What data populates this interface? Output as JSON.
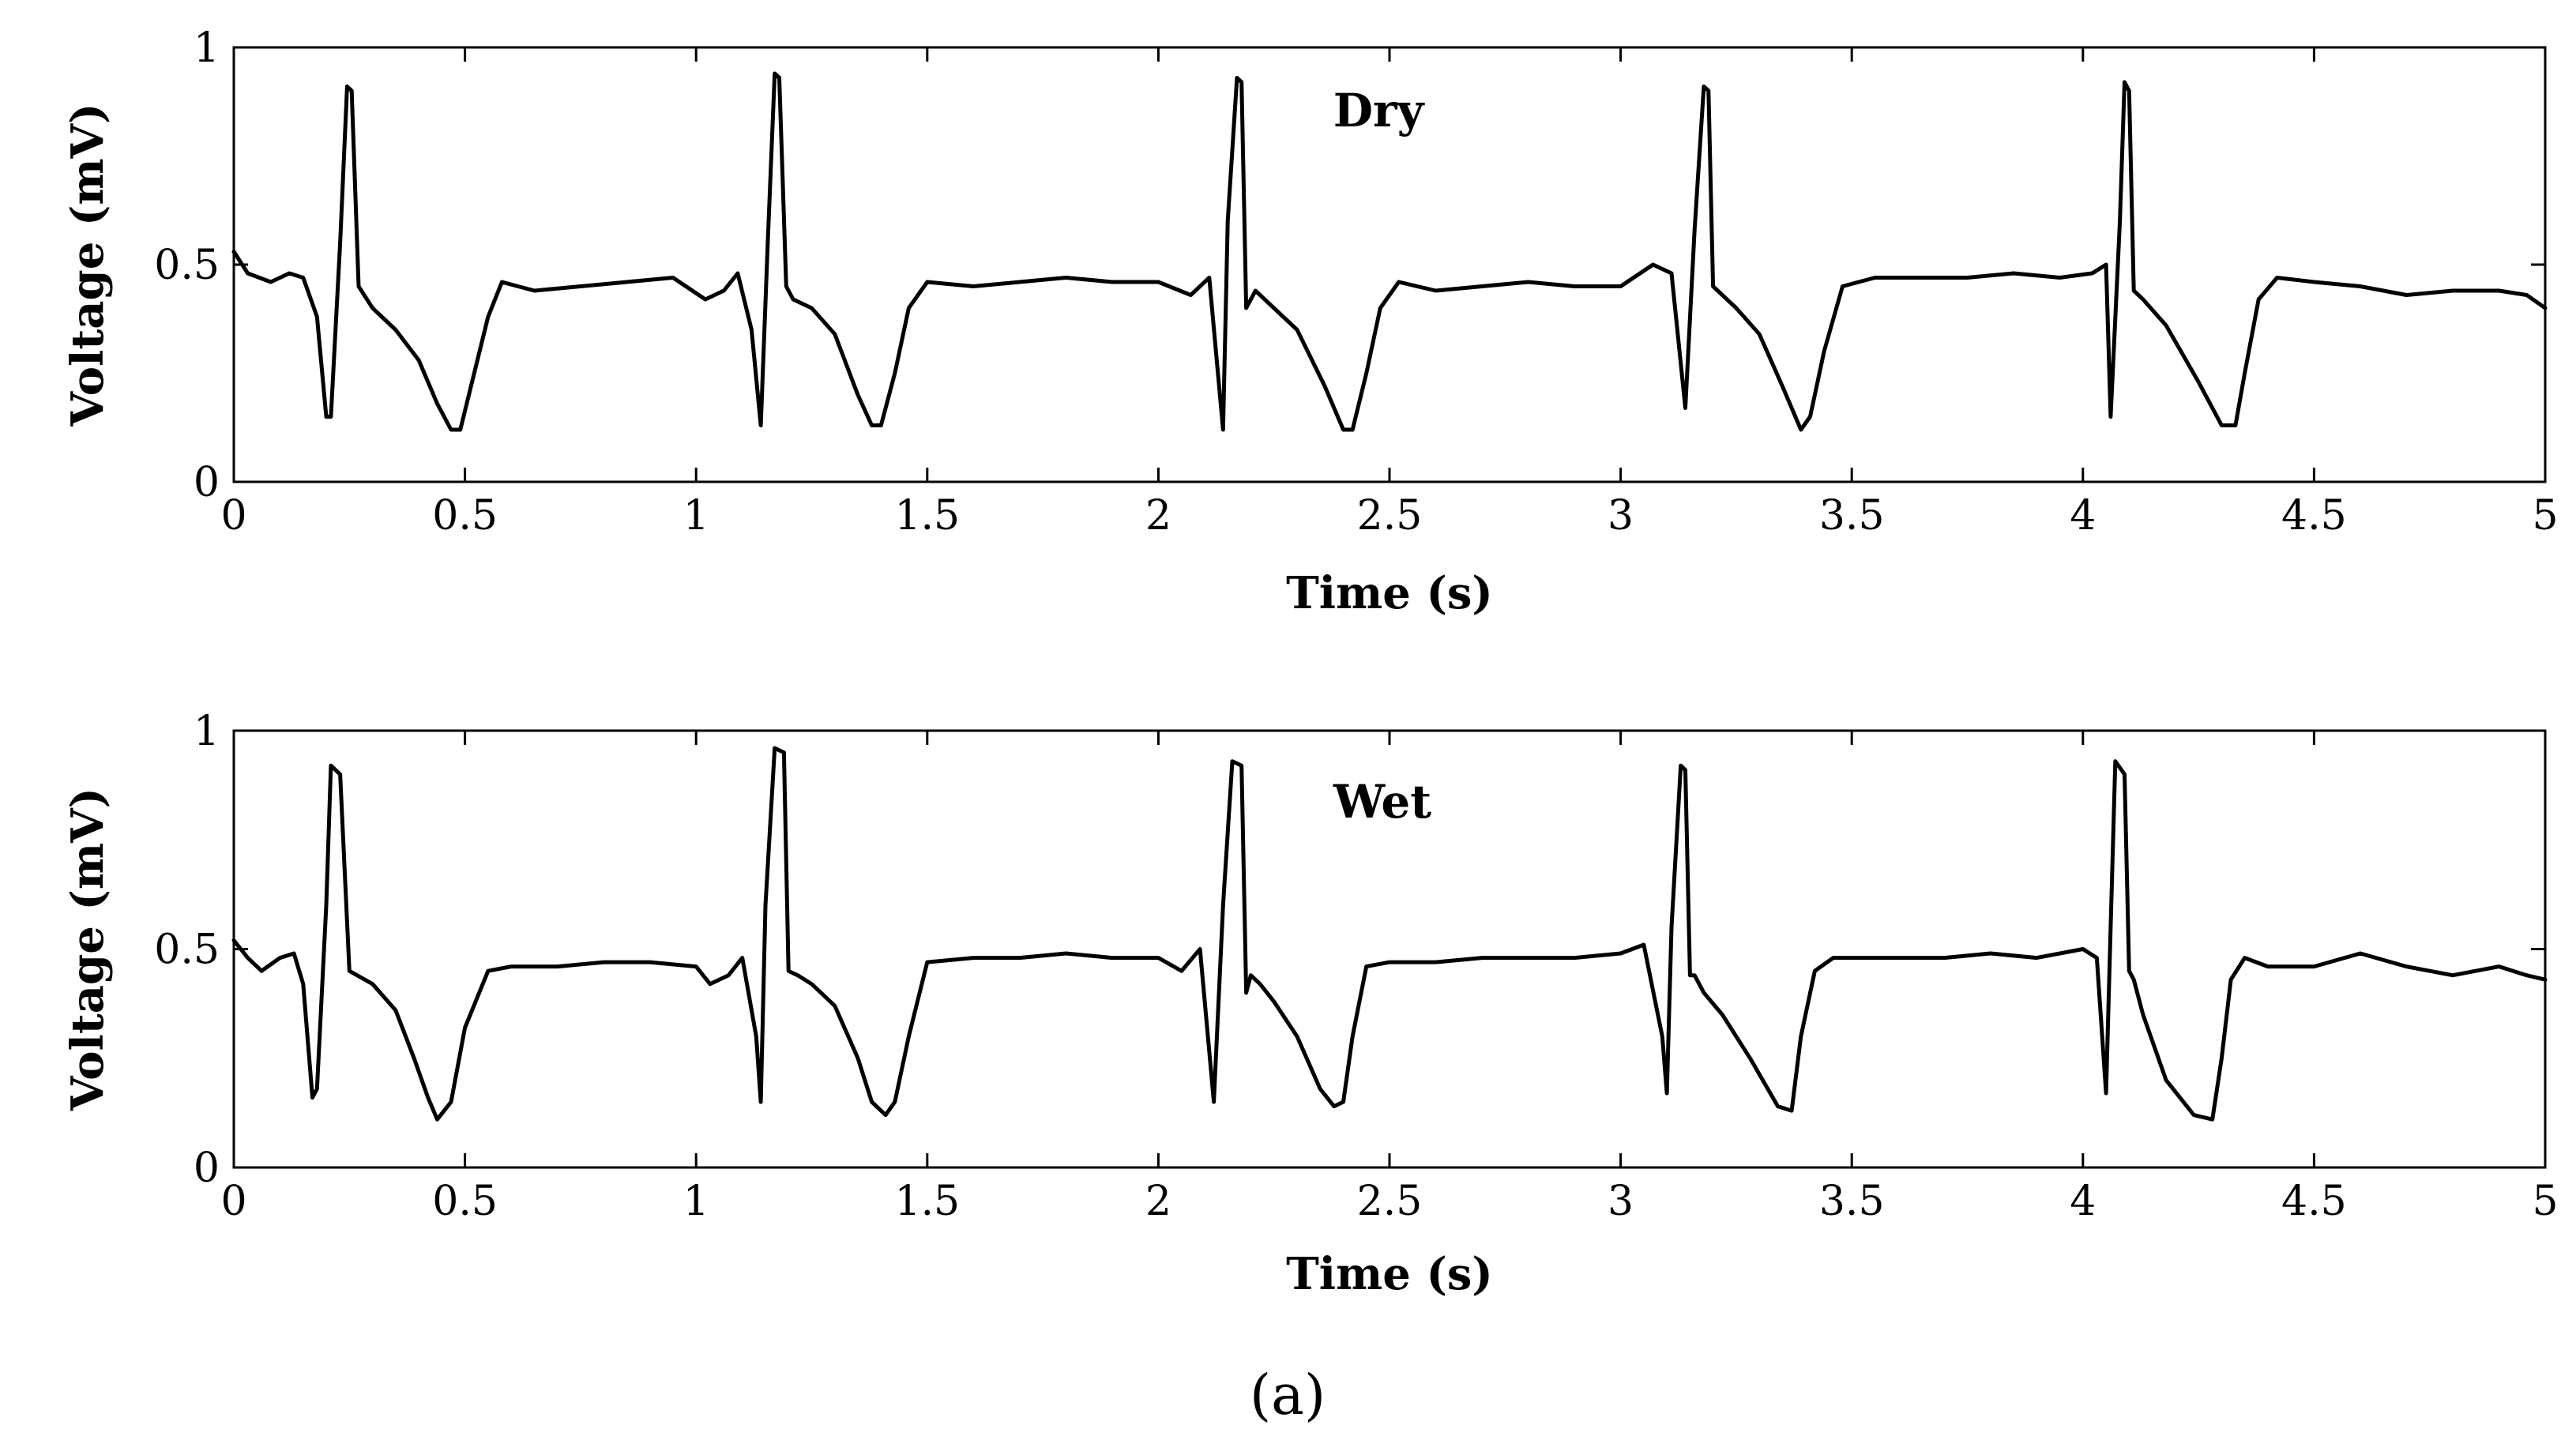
{
  "caption": "(a)",
  "chart_data": [
    {
      "type": "line",
      "title": "",
      "panel_label": "Dry",
      "xlabel": "Time (s)",
      "ylabel": "Voltage (mV)",
      "xlim": [
        0,
        5
      ],
      "ylim": [
        0,
        1
      ],
      "xticks": [
        0,
        0.5,
        1,
        1.5,
        2,
        2.5,
        3,
        3.5,
        4,
        4.5,
        5
      ],
      "xtick_labels": [
        "0",
        "0.5",
        "1",
        "1.5",
        "2",
        "2.5",
        "3",
        "3.5",
        "4",
        "4.5",
        "5"
      ],
      "yticks": [
        0,
        0.5,
        1
      ],
      "ytick_labels": [
        "0",
        "0.5",
        "1"
      ],
      "grid": false,
      "legend": "none",
      "color": "#000000",
      "series": [
        {
          "values_note": "",
          "x": [
            0,
            0.03,
            0.08,
            0.12,
            0.15,
            0.18,
            0.2,
            0.21,
            0.23,
            0.245,
            0.255,
            0.27,
            0.3,
            0.35,
            0.4,
            0.44,
            0.47,
            0.49,
            0.52,
            0.55,
            0.58,
            0.65,
            0.75,
            0.85,
            0.95,
            1.02,
            1.06,
            1.09,
            1.12,
            1.14,
            1.155,
            1.17,
            1.18,
            1.195,
            1.21,
            1.25,
            1.3,
            1.35,
            1.38,
            1.4,
            1.43,
            1.46,
            1.5,
            1.6,
            1.7,
            1.8,
            1.9,
            2.0,
            2.07,
            2.11,
            2.14,
            2.15,
            2.17,
            2.18,
            2.19,
            2.21,
            2.25,
            2.3,
            2.36,
            2.4,
            2.42,
            2.45,
            2.48,
            2.52,
            2.6,
            2.7,
            2.8,
            2.9,
            3.0,
            3.07,
            3.11,
            3.14,
            3.16,
            3.18,
            3.19,
            3.2,
            3.22,
            3.25,
            3.3,
            3.35,
            3.39,
            3.41,
            3.44,
            3.48,
            3.55,
            3.65,
            3.75,
            3.85,
            3.95,
            4.02,
            4.05,
            4.06,
            4.08,
            4.09,
            4.1,
            4.11,
            4.13,
            4.18,
            4.25,
            4.3,
            4.33,
            4.35,
            4.38,
            4.42,
            4.5,
            4.6,
            4.7,
            4.8,
            4.9,
            4.96,
            5.0
          ],
          "y": [
            0.53,
            0.48,
            0.46,
            0.48,
            0.47,
            0.38,
            0.15,
            0.15,
            0.55,
            0.91,
            0.9,
            0.45,
            0.4,
            0.35,
            0.28,
            0.18,
            0.12,
            0.12,
            0.25,
            0.38,
            0.46,
            0.44,
            0.45,
            0.46,
            0.47,
            0.42,
            0.44,
            0.48,
            0.35,
            0.13,
            0.55,
            0.94,
            0.93,
            0.45,
            0.42,
            0.4,
            0.34,
            0.2,
            0.13,
            0.13,
            0.25,
            0.4,
            0.46,
            0.45,
            0.46,
            0.47,
            0.46,
            0.46,
            0.43,
            0.47,
            0.12,
            0.6,
            0.93,
            0.92,
            0.4,
            0.44,
            0.4,
            0.35,
            0.22,
            0.12,
            0.12,
            0.25,
            0.4,
            0.46,
            0.44,
            0.45,
            0.46,
            0.45,
            0.45,
            0.5,
            0.48,
            0.17,
            0.58,
            0.91,
            0.9,
            0.45,
            0.43,
            0.4,
            0.34,
            0.22,
            0.12,
            0.15,
            0.3,
            0.45,
            0.47,
            0.47,
            0.47,
            0.48,
            0.47,
            0.48,
            0.5,
            0.15,
            0.6,
            0.92,
            0.9,
            0.44,
            0.42,
            0.36,
            0.23,
            0.13,
            0.13,
            0.25,
            0.42,
            0.47,
            0.46,
            0.45,
            0.43,
            0.44,
            0.44,
            0.43,
            0.4
          ]
        }
      ]
    },
    {
      "type": "line",
      "title": "",
      "panel_label": "Wet",
      "xlabel": "Time (s)",
      "ylabel": "Voltage (mV)",
      "xlim": [
        0,
        5
      ],
      "ylim": [
        0,
        1
      ],
      "xticks": [
        0,
        0.5,
        1,
        1.5,
        2,
        2.5,
        3,
        3.5,
        4,
        4.5,
        5
      ],
      "xtick_labels": [
        "0",
        "0.5",
        "1",
        "1.5",
        "2",
        "2.5",
        "3",
        "3.5",
        "4",
        "4.5",
        "5"
      ],
      "yticks": [
        0,
        0.5,
        1
      ],
      "ytick_labels": [
        "0",
        "0.5",
        "1"
      ],
      "grid": false,
      "legend": "none",
      "color": "#000000",
      "series": [
        {
          "x": [
            0,
            0.03,
            0.06,
            0.1,
            0.13,
            0.15,
            0.17,
            0.18,
            0.2,
            0.21,
            0.23,
            0.25,
            0.3,
            0.35,
            0.39,
            0.42,
            0.44,
            0.47,
            0.5,
            0.55,
            0.6,
            0.7,
            0.8,
            0.9,
            1.0,
            1.03,
            1.07,
            1.1,
            1.13,
            1.14,
            1.15,
            1.17,
            1.19,
            1.2,
            1.22,
            1.25,
            1.3,
            1.35,
            1.38,
            1.41,
            1.43,
            1.46,
            1.5,
            1.6,
            1.7,
            1.8,
            1.9,
            2.0,
            2.05,
            2.09,
            2.12,
            2.14,
            2.16,
            2.18,
            2.19,
            2.2,
            2.22,
            2.25,
            2.3,
            2.35,
            2.38,
            2.4,
            2.42,
            2.45,
            2.5,
            2.6,
            2.7,
            2.8,
            2.9,
            3.0,
            3.05,
            3.09,
            3.1,
            3.11,
            3.13,
            3.14,
            3.15,
            3.16,
            3.18,
            3.22,
            3.28,
            3.34,
            3.37,
            3.39,
            3.42,
            3.46,
            3.5,
            3.6,
            3.7,
            3.8,
            3.9,
            4.0,
            4.03,
            4.05,
            4.06,
            4.07,
            4.09,
            4.1,
            4.11,
            4.13,
            4.18,
            4.24,
            4.28,
            4.3,
            4.32,
            4.35,
            4.4,
            4.5,
            4.6,
            4.7,
            4.8,
            4.9,
            4.96,
            5.0
          ],
          "y": [
            0.52,
            0.48,
            0.45,
            0.48,
            0.49,
            0.42,
            0.16,
            0.18,
            0.6,
            0.92,
            0.9,
            0.45,
            0.42,
            0.36,
            0.25,
            0.16,
            0.11,
            0.15,
            0.32,
            0.45,
            0.46,
            0.46,
            0.47,
            0.47,
            0.46,
            0.42,
            0.44,
            0.48,
            0.3,
            0.15,
            0.6,
            0.96,
            0.95,
            0.45,
            0.44,
            0.42,
            0.37,
            0.25,
            0.15,
            0.12,
            0.15,
            0.3,
            0.47,
            0.48,
            0.48,
            0.49,
            0.48,
            0.48,
            0.45,
            0.5,
            0.15,
            0.6,
            0.93,
            0.92,
            0.4,
            0.44,
            0.42,
            0.38,
            0.3,
            0.18,
            0.14,
            0.15,
            0.3,
            0.46,
            0.47,
            0.47,
            0.48,
            0.48,
            0.48,
            0.49,
            0.51,
            0.3,
            0.17,
            0.55,
            0.92,
            0.91,
            0.44,
            0.44,
            0.4,
            0.35,
            0.25,
            0.14,
            0.13,
            0.3,
            0.45,
            0.48,
            0.48,
            0.48,
            0.48,
            0.49,
            0.48,
            0.5,
            0.48,
            0.17,
            0.55,
            0.93,
            0.9,
            0.45,
            0.43,
            0.35,
            0.2,
            0.12,
            0.11,
            0.25,
            0.43,
            0.48,
            0.46,
            0.46,
            0.49,
            0.46,
            0.44,
            0.46,
            0.44,
            0.43
          ]
        }
      ]
    }
  ]
}
